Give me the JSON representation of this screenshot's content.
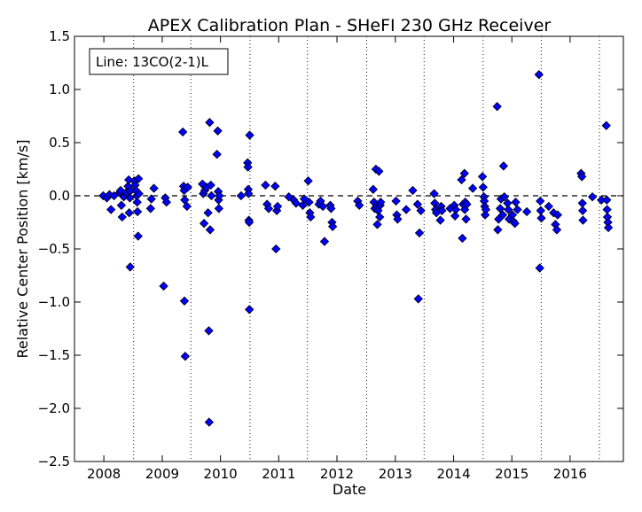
{
  "chart_data": {
    "type": "scatter",
    "title": "APEX Calibration Plan - SHeFI 230 GHz Receiver",
    "xlabel": "Date",
    "ylabel": "Relative Center Position [km/s]",
    "annotation": "Line: 13CO(2-1)L",
    "xlim": [
      "2007-07-01",
      "2016-11-30"
    ],
    "ylim": [
      -2.5,
      1.5
    ],
    "x_ticks": [
      "2008",
      "2009",
      "2010",
      "2011",
      "2012",
      "2013",
      "2014",
      "2015",
      "2016"
    ],
    "y_ticks": [
      "1.5",
      "1.0",
      "0.5",
      "0.0",
      "−0.5",
      "−1.0",
      "−1.5",
      "−2.0",
      "−2.5"
    ],
    "reference_line": 0.0,
    "season_boundaries": [
      "2008-07-06",
      "2009-06-29",
      "2010-07-05",
      "2011-06-30",
      "2012-07-05",
      "2013-06-30",
      "2014-07-05",
      "2015-07-04",
      "2016-07-03"
    ],
    "marker_color": "#0000ff",
    "series": [
      {
        "points": [
          [
            "2007-12-28",
            0.0
          ],
          [
            "2008-01-20",
            -0.02
          ],
          [
            "2008-02-05",
            0.01
          ],
          [
            "2008-02-15",
            -0.13
          ],
          [
            "2008-03-05",
            0.0
          ],
          [
            "2008-04-10",
            0.03
          ],
          [
            "2008-04-15",
            0.05
          ],
          [
            "2008-04-20",
            -0.09
          ],
          [
            "2008-04-25",
            -0.2
          ],
          [
            "2008-05-05",
            -0.01
          ],
          [
            "2008-05-20",
            0.03
          ],
          [
            "2008-06-01",
            0.09
          ],
          [
            "2008-06-05",
            0.15
          ],
          [
            "2008-06-08",
            -0.16
          ],
          [
            "2008-06-10",
            0.04
          ],
          [
            "2008-06-12",
            -0.02
          ],
          [
            "2008-06-14",
            -0.67
          ],
          [
            "2008-06-18",
            0.05
          ],
          [
            "2008-07-10",
            0.14
          ],
          [
            "2008-07-15",
            0.1
          ],
          [
            "2008-07-20",
            0.05
          ],
          [
            "2008-07-25",
            0.0
          ],
          [
            "2008-07-28",
            -0.06
          ],
          [
            "2008-07-30",
            -0.15
          ],
          [
            "2008-08-03",
            -0.38
          ],
          [
            "2008-08-05",
            0.16
          ],
          [
            "2008-08-08",
            0.02
          ],
          [
            "2008-10-20",
            -0.12
          ],
          [
            "2008-10-25",
            -0.03
          ],
          [
            "2008-11-10",
            0.07
          ],
          [
            "2009-01-10",
            -0.85
          ],
          [
            "2009-01-20",
            -0.02
          ],
          [
            "2009-01-28",
            -0.06
          ],
          [
            "2009-05-10",
            0.6
          ],
          [
            "2009-05-15",
            0.09
          ],
          [
            "2009-05-18",
            0.05
          ],
          [
            "2009-05-20",
            -0.99
          ],
          [
            "2009-05-22",
            -0.04
          ],
          [
            "2009-05-25",
            -1.51
          ],
          [
            "2009-06-05",
            -0.1
          ],
          [
            "2009-06-10",
            0.08
          ],
          [
            "2009-09-10",
            0.11
          ],
          [
            "2009-09-15",
            0.02
          ],
          [
            "2009-09-20",
            -0.26
          ],
          [
            "2009-09-25",
            0.05
          ],
          [
            "2009-10-05",
            0.08
          ],
          [
            "2009-10-15",
            -0.16
          ],
          [
            "2009-10-20",
            -1.27
          ],
          [
            "2009-10-22",
            -2.13
          ],
          [
            "2009-10-25",
            0.69
          ],
          [
            "2009-10-28",
            -0.32
          ],
          [
            "2009-11-01",
            0.1
          ],
          [
            "2009-11-05",
            0.0
          ],
          [
            "2009-12-10",
            0.39
          ],
          [
            "2009-12-15",
            0.61
          ],
          [
            "2009-12-18",
            0.04
          ],
          [
            "2009-12-20",
            -0.04
          ],
          [
            "2009-12-22",
            -0.12
          ],
          [
            "2009-12-25",
            0.0
          ],
          [
            "2010-05-10",
            0.0
          ],
          [
            "2010-06-20",
            0.31
          ],
          [
            "2010-06-22",
            0.27
          ],
          [
            "2010-06-24",
            0.06
          ],
          [
            "2010-06-26",
            0.02
          ],
          [
            "2010-06-28",
            -0.23
          ],
          [
            "2010-06-30",
            -0.25
          ],
          [
            "2010-07-01",
            -1.07
          ],
          [
            "2010-07-03",
            0.57
          ],
          [
            "2010-10-10",
            0.1
          ],
          [
            "2010-10-20",
            -0.08
          ],
          [
            "2010-10-30",
            -0.12
          ],
          [
            "2010-12-10",
            0.09
          ],
          [
            "2010-12-15",
            -0.5
          ],
          [
            "2010-12-20",
            -0.14
          ],
          [
            "2010-12-25",
            -0.1
          ],
          [
            "2011-03-05",
            -0.01
          ],
          [
            "2011-04-05",
            -0.04
          ],
          [
            "2011-04-20",
            -0.07
          ],
          [
            "2011-06-01",
            -0.09
          ],
          [
            "2011-06-10",
            -0.03
          ],
          [
            "2011-07-05",
            0.14
          ],
          [
            "2011-07-10",
            -0.06
          ],
          [
            "2011-07-15",
            -0.16
          ],
          [
            "2011-07-20",
            -0.2
          ],
          [
            "2011-09-10",
            -0.08
          ],
          [
            "2011-09-20",
            -0.05
          ],
          [
            "2011-10-05",
            -0.1
          ],
          [
            "2011-10-15",
            -0.43
          ],
          [
            "2011-11-20",
            -0.09
          ],
          [
            "2011-11-25",
            -0.12
          ],
          [
            "2011-12-01",
            -0.25
          ],
          [
            "2011-12-05",
            -0.29
          ],
          [
            "2012-05-10",
            -0.05
          ],
          [
            "2012-05-20",
            -0.09
          ],
          [
            "2012-08-15",
            0.06
          ],
          [
            "2012-08-20",
            -0.06
          ],
          [
            "2012-08-25",
            -0.12
          ],
          [
            "2012-09-01",
            0.25
          ],
          [
            "2012-09-05",
            -0.1
          ],
          [
            "2012-09-10",
            -0.27
          ],
          [
            "2012-09-15",
            -0.14
          ],
          [
            "2012-09-20",
            0.23
          ],
          [
            "2012-09-25",
            -0.2
          ],
          [
            "2012-09-28",
            -0.09
          ],
          [
            "2012-10-01",
            -0.06
          ],
          [
            "2013-01-05",
            -0.05
          ],
          [
            "2013-01-10",
            -0.18
          ],
          [
            "2013-01-15",
            -0.22
          ],
          [
            "2013-03-10",
            -0.13
          ],
          [
            "2013-04-20",
            0.05
          ],
          [
            "2013-05-20",
            -0.08
          ],
          [
            "2013-05-25",
            -0.97
          ],
          [
            "2013-06-01",
            -0.35
          ],
          [
            "2013-06-10",
            -0.14
          ],
          [
            "2013-09-01",
            0.02
          ],
          [
            "2013-09-05",
            -0.07
          ],
          [
            "2013-09-10",
            -0.13
          ],
          [
            "2013-09-15",
            -0.16
          ],
          [
            "2013-10-10",
            -0.23
          ],
          [
            "2013-10-15",
            -0.1
          ],
          [
            "2013-10-20",
            -0.14
          ],
          [
            "2013-12-10",
            -0.12
          ],
          [
            "2014-01-05",
            -0.09
          ],
          [
            "2014-01-10",
            -0.19
          ],
          [
            "2014-01-15",
            -0.13
          ],
          [
            "2014-02-20",
            0.15
          ],
          [
            "2014-02-25",
            -0.4
          ],
          [
            "2014-03-01",
            -0.08
          ],
          [
            "2014-03-10",
            0.21
          ],
          [
            "2014-03-12",
            -0.13
          ],
          [
            "2014-03-15",
            -0.06
          ],
          [
            "2014-03-20",
            -0.22
          ],
          [
            "2014-03-25",
            -0.08
          ],
          [
            "2014-05-01",
            0.07
          ],
          [
            "2014-07-01",
            0.18
          ],
          [
            "2014-07-05",
            0.08
          ],
          [
            "2014-07-10",
            -0.01
          ],
          [
            "2014-07-12",
            -0.05
          ],
          [
            "2014-07-15",
            -0.1
          ],
          [
            "2014-07-18",
            -0.18
          ],
          [
            "2014-07-22",
            -0.13
          ],
          [
            "2014-10-01",
            0.84
          ],
          [
            "2014-10-05",
            -0.32
          ],
          [
            "2014-10-10",
            -0.22
          ],
          [
            "2014-10-20",
            -0.12
          ],
          [
            "2014-10-25",
            -0.03
          ],
          [
            "2014-11-05",
            -0.18
          ],
          [
            "2014-11-10",
            0.28
          ],
          [
            "2014-11-15",
            -0.01
          ],
          [
            "2014-12-05",
            -0.07
          ],
          [
            "2014-12-10",
            -0.13
          ],
          [
            "2014-12-15",
            -0.22
          ],
          [
            "2015-01-05",
            -0.18
          ],
          [
            "2015-01-10",
            -0.24
          ],
          [
            "2015-01-20",
            -0.26
          ],
          [
            "2015-01-25",
            -0.06
          ],
          [
            "2015-02-05",
            -0.13
          ],
          [
            "2015-04-05",
            -0.15
          ],
          [
            "2015-06-20",
            1.14
          ],
          [
            "2015-06-25",
            -0.68
          ],
          [
            "2015-06-28",
            -0.05
          ],
          [
            "2015-07-01",
            -0.14
          ],
          [
            "2015-07-05",
            -0.21
          ],
          [
            "2015-08-20",
            -0.1
          ],
          [
            "2015-09-20",
            -0.16
          ],
          [
            "2015-10-01",
            -0.27
          ],
          [
            "2015-10-10",
            -0.32
          ],
          [
            "2015-10-15",
            -0.18
          ],
          [
            "2016-03-10",
            0.21
          ],
          [
            "2016-03-15",
            0.18
          ],
          [
            "2016-03-18",
            -0.07
          ],
          [
            "2016-03-20",
            -0.14
          ],
          [
            "2016-03-22",
            -0.23
          ],
          [
            "2016-05-20",
            -0.01
          ],
          [
            "2016-07-15",
            -0.04
          ],
          [
            "2016-08-15",
            0.66
          ],
          [
            "2016-08-18",
            -0.04
          ],
          [
            "2016-08-20",
            -0.13
          ],
          [
            "2016-08-22",
            -0.2
          ],
          [
            "2016-08-25",
            -0.25
          ],
          [
            "2016-08-28",
            -0.3
          ]
        ]
      }
    ]
  }
}
